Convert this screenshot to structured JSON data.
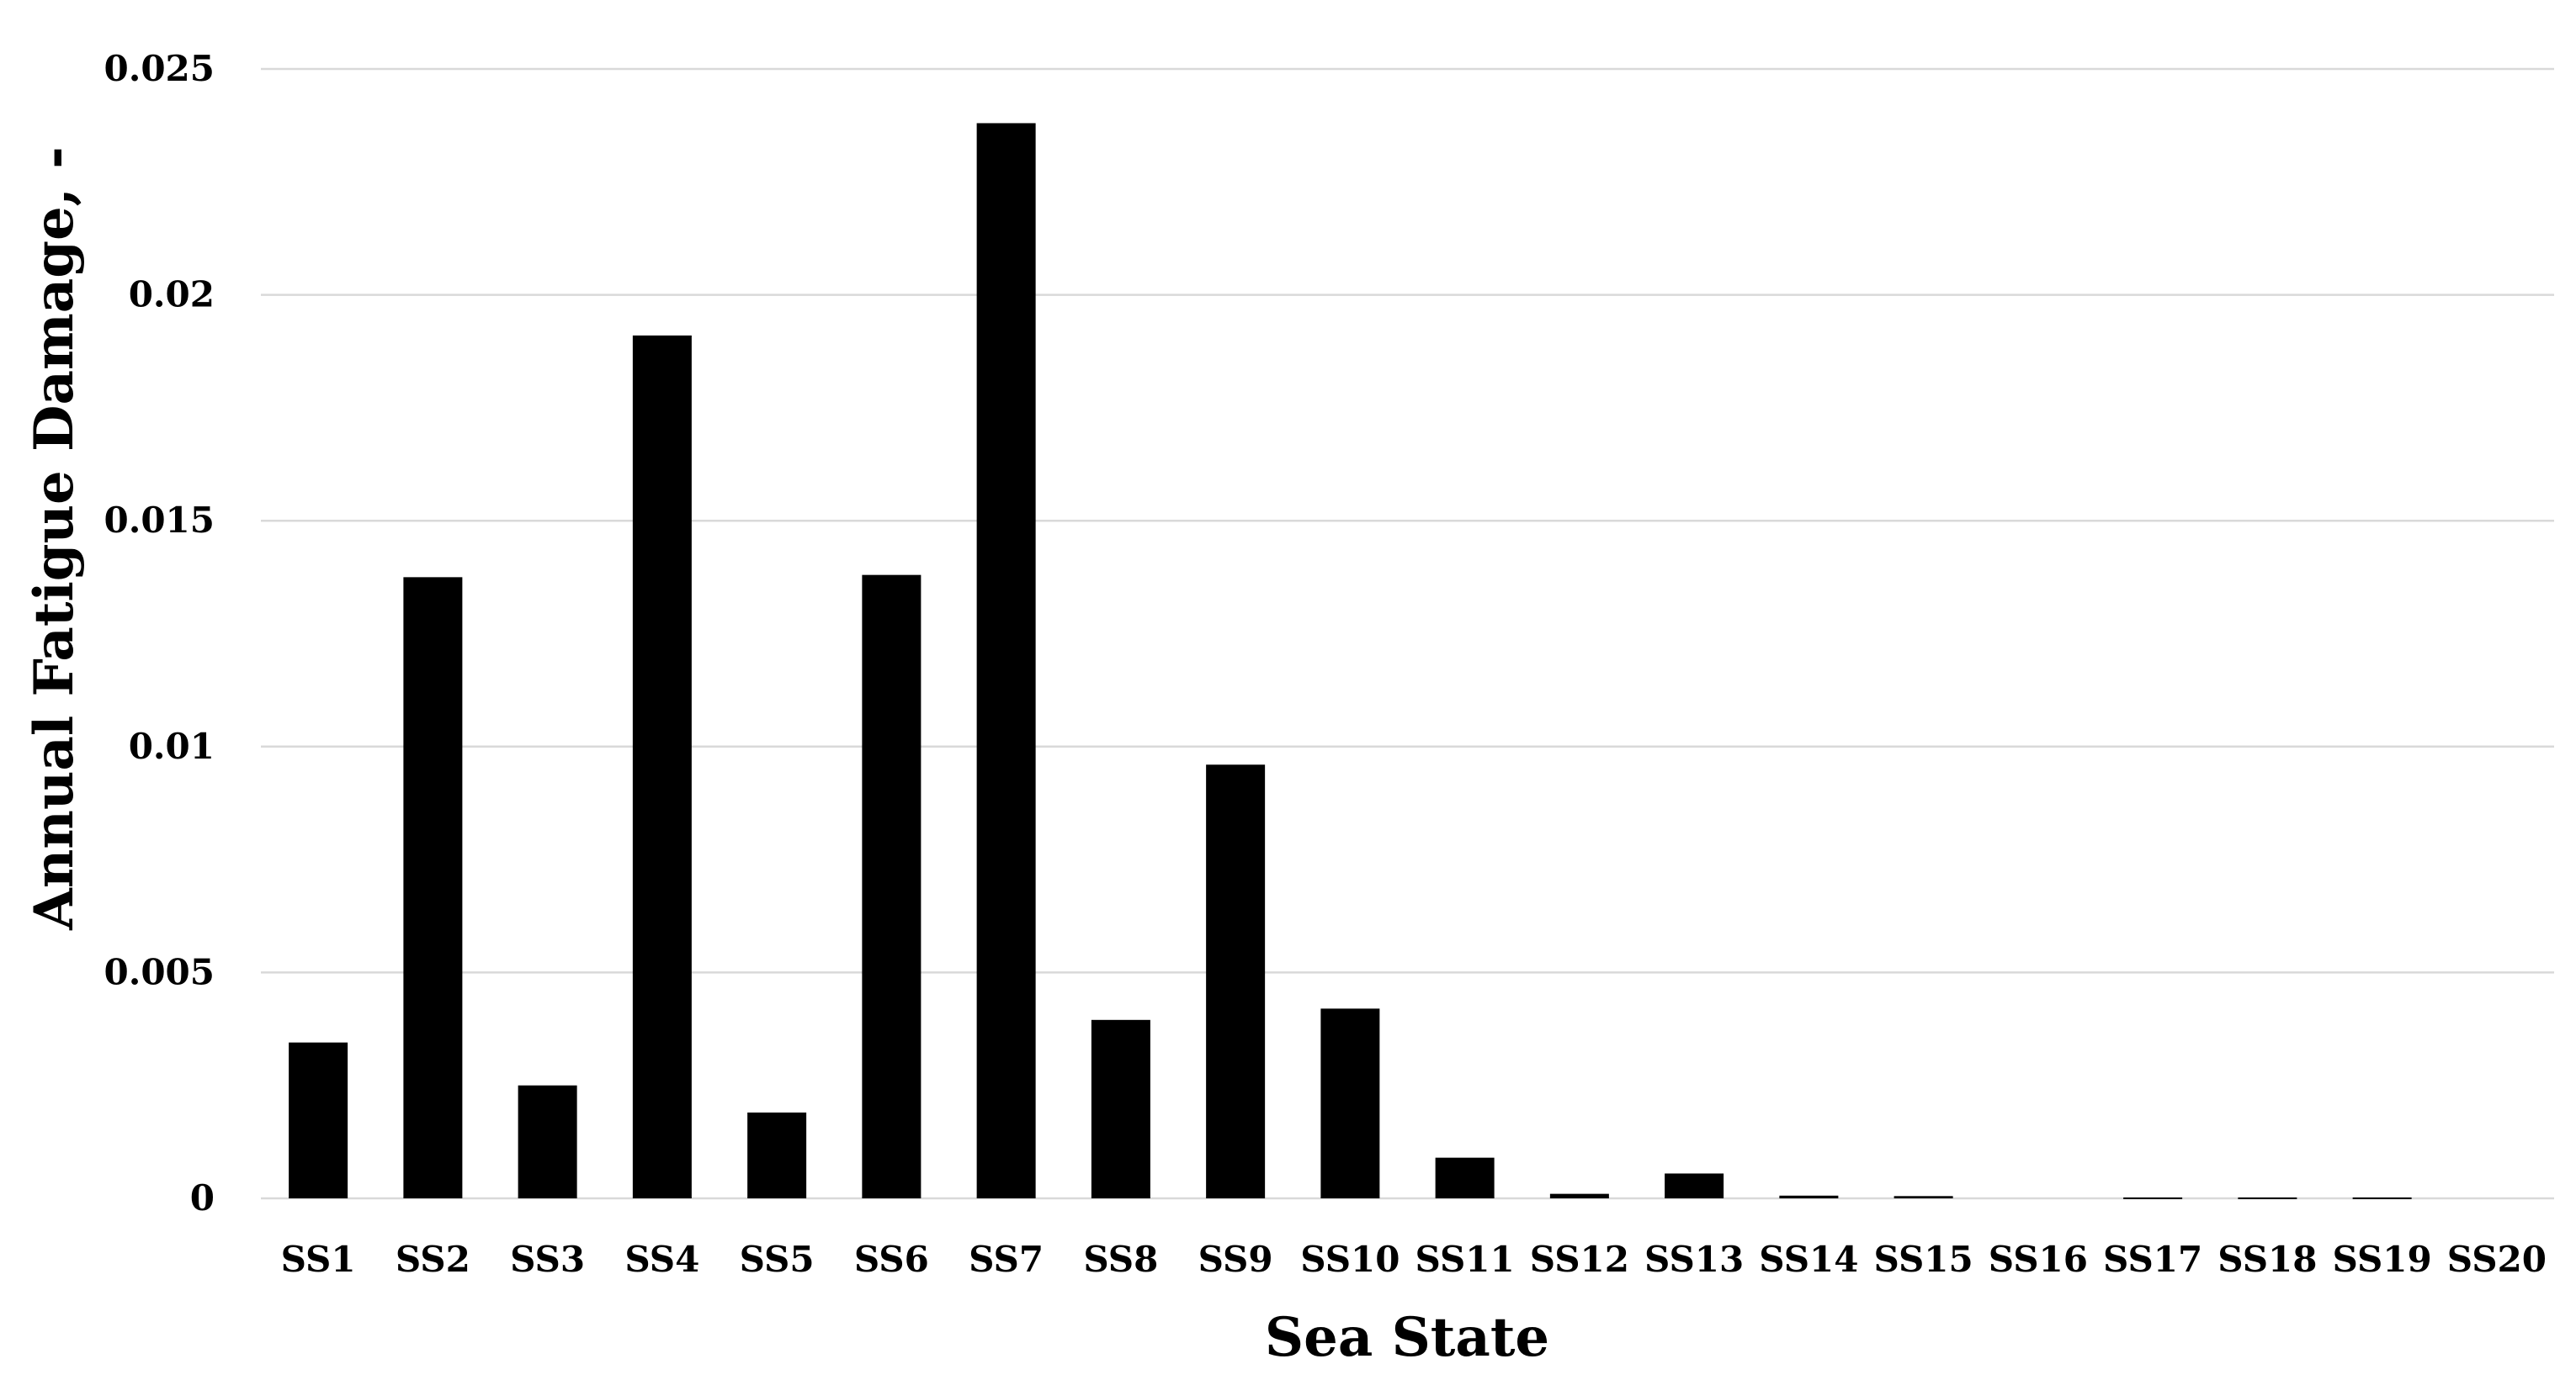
{
  "chart_data": {
    "type": "bar",
    "title": "",
    "xlabel": "Sea State",
    "ylabel": "Annual Fatigue Damage, -",
    "categories": [
      "SS1",
      "SS2",
      "SS3",
      "SS4",
      "SS5",
      "SS6",
      "SS7",
      "SS8",
      "SS9",
      "SS10",
      "SS11",
      "SS12",
      "SS13",
      "SS14",
      "SS15",
      "SS16",
      "SS17",
      "SS18",
      "SS19",
      "SS20"
    ],
    "values": [
      0.00345,
      0.01375,
      0.0025,
      0.0191,
      0.0019,
      0.0138,
      0.0238,
      0.00395,
      0.0096,
      0.0042,
      0.0009,
      0.0001,
      0.00055,
      6e-05,
      5e-05,
      0.0,
      2e-05,
      2e-05,
      2e-05,
      0.0
    ],
    "ylim": [
      0,
      0.025
    ],
    "yticks": [
      0,
      0.005,
      0.01,
      0.015,
      0.02,
      0.025
    ],
    "ytick_labels": [
      "0",
      "0.005",
      "0.01",
      "0.015",
      "0.02",
      "0.025"
    ],
    "grid": true,
    "legend": "none",
    "bar_color": "#000000",
    "grid_color": "#d9d9d9"
  }
}
